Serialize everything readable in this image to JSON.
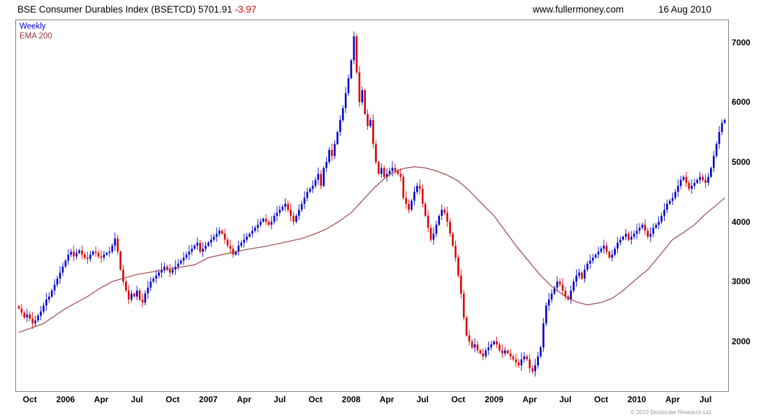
{
  "header": {
    "index_name": "BSE Consumer Durables Index (BSETCD)",
    "last_price": "5701.91",
    "change": "-3.97",
    "site": "www.fullermoney.com",
    "date": "16 Aug 2010"
  },
  "legend": {
    "series1": "Weekly",
    "series2": "EMA 200"
  },
  "footer": {
    "copyright": "© 2010 Stockcube Research Ltd"
  },
  "chart_data": {
    "type": "candlestick",
    "title": "BSE Consumer Durables Index (BSETCD)",
    "last_close": 5701.91,
    "change": -3.97,
    "interval": "weekly",
    "ylim": [
      1170,
      7380
    ],
    "grid": false,
    "legend_position": "top-left",
    "colors": {
      "up": "#0000cc",
      "down": "#dd0000",
      "ema": "#994444",
      "border": "#808080"
    },
    "y_ticks": [
      2000,
      3000,
      4000,
      5000,
      6000,
      7000
    ],
    "x_ticks": [
      {
        "label": "Oct",
        "week": 4,
        "year": false
      },
      {
        "label": "2006",
        "week": 17,
        "year": true
      },
      {
        "label": "Apr",
        "week": 30,
        "year": false
      },
      {
        "label": "Jul",
        "week": 43,
        "year": false
      },
      {
        "label": "Oct",
        "week": 56,
        "year": false
      },
      {
        "label": "2007",
        "week": 69,
        "year": true
      },
      {
        "label": "Apr",
        "week": 82,
        "year": false
      },
      {
        "label": "Jul",
        "week": 95,
        "year": false
      },
      {
        "label": "Oct",
        "week": 108,
        "year": false
      },
      {
        "label": "2008",
        "week": 121,
        "year": true
      },
      {
        "label": "Apr",
        "week": 134,
        "year": false
      },
      {
        "label": "Jul",
        "week": 147,
        "year": false
      },
      {
        "label": "Oct",
        "week": 160,
        "year": false
      },
      {
        "label": "2009",
        "week": 173,
        "year": true
      },
      {
        "label": "Apr",
        "week": 186,
        "year": false
      },
      {
        "label": "Jul",
        "week": 199,
        "year": false
      },
      {
        "label": "Oct",
        "week": 212,
        "year": false
      },
      {
        "label": "2010",
        "week": 225,
        "year": true
      },
      {
        "label": "Apr",
        "week": 238,
        "year": false
      },
      {
        "label": "Jul",
        "week": 250,
        "year": false
      }
    ],
    "closes": [
      2550,
      2480,
      2400,
      2450,
      2380,
      2300,
      2350,
      2430,
      2500,
      2600,
      2700,
      2750,
      2850,
      2950,
      3050,
      3150,
      3250,
      3350,
      3450,
      3500,
      3420,
      3480,
      3520,
      3450,
      3400,
      3380,
      3450,
      3500,
      3480,
      3420,
      3400,
      3450,
      3480,
      3500,
      3600,
      3720,
      3500,
      3200,
      3000,
      2850,
      2700,
      2800,
      2750,
      2850,
      2700,
      2650,
      2800,
      2900,
      3000,
      3050,
      3100,
      3150,
      3200,
      3250,
      3200,
      3150,
      3200,
      3250,
      3300,
      3350,
      3400,
      3450,
      3500,
      3550,
      3600,
      3650,
      3500,
      3550,
      3600,
      3650,
      3700,
      3750,
      3800,
      3850,
      3800,
      3700,
      3600,
      3550,
      3450,
      3500,
      3600,
      3650,
      3700,
      3750,
      3800,
      3850,
      3900,
      3950,
      4000,
      4050,
      4000,
      3950,
      4000,
      4100,
      4150,
      4200,
      4250,
      4300,
      4200,
      4100,
      4000,
      4100,
      4200,
      4300,
      4400,
      4500,
      4550,
      4600,
      4700,
      4800,
      4600,
      4900,
      5000,
      5200,
      5100,
      5300,
      5500,
      5700,
      5900,
      6150,
      6400,
      6700,
      7100,
      6500,
      6000,
      6200,
      5800,
      5600,
      5700,
      5300,
      5000,
      4800,
      4900,
      4750,
      4800,
      4850,
      4900,
      4850,
      4800,
      4750,
      4400,
      4300,
      4200,
      4350,
      4500,
      4600,
      4550,
      4300,
      4100,
      3900,
      3700,
      3800,
      3950,
      4100,
      4200,
      4150,
      4000,
      3800,
      3600,
      3400,
      3100,
      2800,
      2400,
      2100,
      2000,
      1900,
      1950,
      1850,
      1800,
      1750,
      1850,
      1900,
      1950,
      2000,
      1950,
      1850,
      1800,
      1850,
      1800,
      1750,
      1700,
      1650,
      1600,
      1700,
      1750,
      1700,
      1550,
      1500,
      1600,
      1750,
      1900,
      2300,
      2600,
      2700,
      2800,
      2900,
      3000,
      2950,
      2850,
      2750,
      2700,
      2850,
      3000,
      3100,
      3150,
      3050,
      3200,
      3300,
      3350,
      3400,
      3450,
      3500,
      3550,
      3600,
      3500,
      3400,
      3450,
      3550,
      3650,
      3700,
      3750,
      3800,
      3700,
      3750,
      3800,
      3850,
      3900,
      3950,
      3850,
      3750,
      3800,
      3900,
      3950,
      4000,
      4100,
      4200,
      4300,
      4350,
      4400,
      4500,
      4600,
      4700,
      4750,
      4650,
      4550,
      4600,
      4650,
      4700,
      4750,
      4700,
      4650,
      4750,
      4900,
      5100,
      5300,
      5500,
      5650,
      5701.91
    ],
    "ema": [
      [
        0,
        2150
      ],
      [
        9,
        2300
      ],
      [
        17,
        2550
      ],
      [
        25,
        2750
      ],
      [
        30,
        2900
      ],
      [
        34,
        3000
      ],
      [
        43,
        3120
      ],
      [
        51,
        3180
      ],
      [
        56,
        3220
      ],
      [
        64,
        3280
      ],
      [
        69,
        3400
      ],
      [
        77,
        3480
      ],
      [
        82,
        3530
      ],
      [
        90,
        3590
      ],
      [
        95,
        3640
      ],
      [
        103,
        3720
      ],
      [
        108,
        3800
      ],
      [
        112,
        3880
      ],
      [
        116,
        3990
      ],
      [
        121,
        4150
      ],
      [
        125,
        4350
      ],
      [
        129,
        4550
      ],
      [
        133,
        4720
      ],
      [
        136,
        4820
      ],
      [
        140,
        4890
      ],
      [
        144,
        4920
      ],
      [
        148,
        4900
      ],
      [
        152,
        4850
      ],
      [
        156,
        4780
      ],
      [
        160,
        4680
      ],
      [
        164,
        4520
      ],
      [
        168,
        4330
      ],
      [
        173,
        4100
      ],
      [
        177,
        3850
      ],
      [
        181,
        3600
      ],
      [
        186,
        3320
      ],
      [
        190,
        3100
      ],
      [
        194,
        2920
      ],
      [
        199,
        2750
      ],
      [
        203,
        2660
      ],
      [
        207,
        2610
      ],
      [
        212,
        2650
      ],
      [
        216,
        2720
      ],
      [
        220,
        2850
      ],
      [
        225,
        3050
      ],
      [
        229,
        3200
      ],
      [
        233,
        3420
      ],
      [
        238,
        3700
      ],
      [
        242,
        3820
      ],
      [
        246,
        3950
      ],
      [
        250,
        4130
      ],
      [
        254,
        4280
      ],
      [
        257,
        4400
      ]
    ]
  }
}
